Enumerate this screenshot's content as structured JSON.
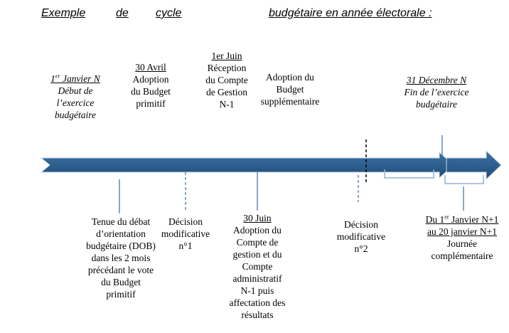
{
  "title": {
    "part1": "Exemple",
    "part2": "de",
    "part3": "cycle",
    "part4": "budgétaire en année électorale :"
  },
  "events_top": {
    "jan1": {
      "day": "1",
      "sup": "er",
      "rest": " Janvier N",
      "l1": "Début de",
      "l2": "l’exercice",
      "l3": "budgétaire"
    },
    "avr30": {
      "date": "30 Avril",
      "l1": "Adoption",
      "l2": "du Budget",
      "l3": "primitif"
    },
    "jun1": {
      "date": "1er Juin",
      "l1": "Réception",
      "l2": "du Compte",
      "l3": "de Gestion",
      "l4": "N-1"
    },
    "bs": {
      "l1": "Adoption du",
      "l2": "Budget",
      "l3": "supplémentaire"
    },
    "dec31": {
      "date": "31 Décembre N",
      "l1": "Fin de l’exercice",
      "l2": "budgétaire"
    }
  },
  "events_bottom": {
    "dob": {
      "l1": "Tenue du débat",
      "l2": "d’orientation",
      "l3": "budgétaire (DOB)",
      "l4": "dans les 2 mois",
      "l5": "précédant le vote",
      "l6": "du Budget",
      "l7": "primitif"
    },
    "dm1": {
      "l1": "Décision",
      "l2": "modificative",
      "l3": "n°1"
    },
    "jun30": {
      "date": "30 Juin",
      "l1": "Adoption du",
      "l2": "Compte de",
      "l3": "gestion et du",
      "l4": "Compte",
      "l5": "administratif",
      "l6": "N-1 puis",
      "l7": "affectation des",
      "l8": "résultats"
    },
    "dm2": {
      "l1": "Décision",
      "l2": "modificative",
      "l3": "n°2"
    },
    "journee": {
      "d1a": "Du 1",
      "d1sup": "er",
      "d1b": " Janvier N+1",
      "d2": "au 20 janvier N+1",
      "l1": "Journée",
      "l2": "complémentaire"
    }
  },
  "colors": {
    "arrow": "#2e5f8f",
    "arrow_dark": "#1f4a74",
    "arrow_light": "#8fb3d6"
  }
}
